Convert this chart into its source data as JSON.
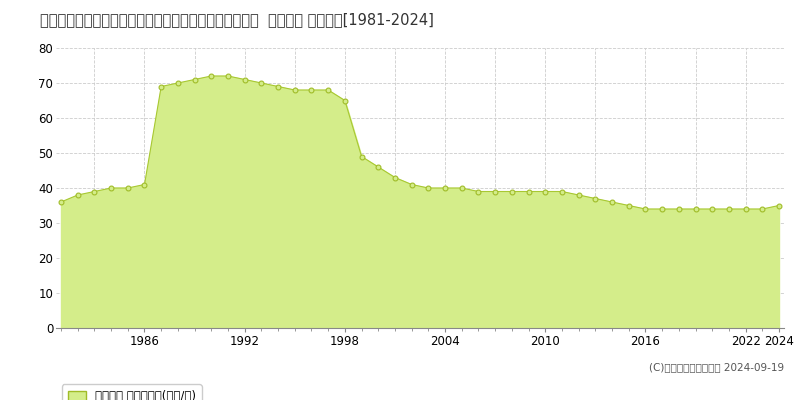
{
  "title": "東京都西多摩郡瑞穂町大字箱根ケ崎字宿東２３６５番４  基準地価 地価推移[1981-2024]",
  "years": [
    1981,
    1982,
    1983,
    1984,
    1985,
    1986,
    1987,
    1988,
    1989,
    1990,
    1991,
    1992,
    1993,
    1994,
    1995,
    1996,
    1997,
    1998,
    1999,
    2000,
    2001,
    2002,
    2003,
    2004,
    2005,
    2006,
    2007,
    2008,
    2009,
    2010,
    2011,
    2012,
    2013,
    2014,
    2015,
    2016,
    2017,
    2018,
    2019,
    2020,
    2021,
    2022,
    2023,
    2024
  ],
  "values": [
    36,
    38,
    39,
    40,
    40,
    41,
    69,
    70,
    71,
    72,
    72,
    71,
    70,
    69,
    68,
    68,
    68,
    65,
    49,
    46,
    43,
    41,
    40,
    40,
    40,
    39,
    39,
    39,
    39,
    39,
    39,
    38,
    37,
    36,
    35,
    34,
    34,
    34,
    34,
    34,
    34,
    34,
    34,
    35
  ],
  "fill_color": "#d4ed8a",
  "line_color": "#a8c832",
  "marker_facecolor": "#d4ed8a",
  "marker_edgecolor": "#a0bc28",
  "background_color": "#ffffff",
  "grid_color": "#cccccc",
  "legend_label": "基準地価 平均坪単価(万円/坪)",
  "copyright_text": "(C)土地価格ドットコム 2024-09-19",
  "ylim": [
    0,
    80
  ],
  "yticks": [
    0,
    10,
    20,
    30,
    40,
    50,
    60,
    70,
    80
  ],
  "xtick_years": [
    1986,
    1992,
    1998,
    2004,
    2010,
    2016,
    2022,
    2024
  ],
  "xgrid_years": [
    1983,
    1986,
    1989,
    1992,
    1995,
    1998,
    2001,
    2004,
    2007,
    2010,
    2013,
    2016,
    2019,
    2022
  ],
  "title_fontsize": 10.5,
  "tick_fontsize": 8.5,
  "legend_fontsize": 8.5,
  "copyright_fontsize": 7.5
}
